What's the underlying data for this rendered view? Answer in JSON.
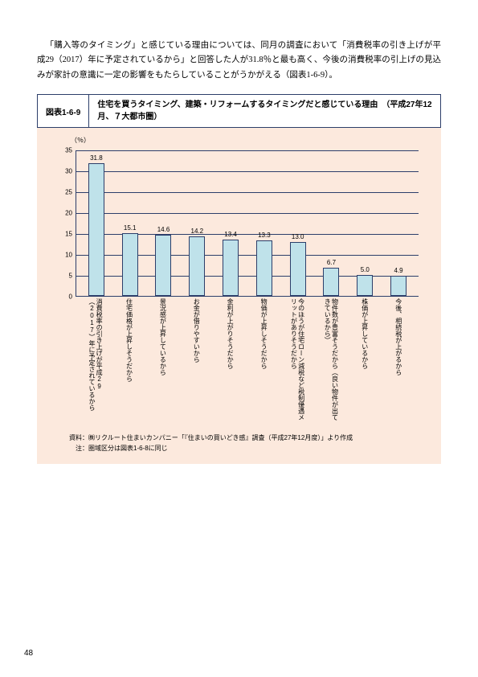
{
  "paragraph": "「購入等のタイミング」と感じている理由については、同月の調査において「消費税率の引き上げが平成29（2017）年に予定されているから」と回答した人が31.8％と最も高く、今後の消費税率の引上げの見込みが家計の意識に一定の影響をもたらしていることがうかがえる（図表1-6-9）。",
  "figure": {
    "number": "図表1-6-9",
    "title": "住宅を買うタイミング、建築・リフォームするタイミングだと感じている理由　（平成27年12月、７大都市圏）",
    "y_unit": "（％）",
    "ylim": [
      0,
      35
    ],
    "yticks": [
      0,
      5,
      10,
      15,
      20,
      25,
      30,
      35
    ],
    "bar_color": "#bfe2ea",
    "border_color": "#2c3e6a",
    "data": [
      {
        "label": "消費税率の引き上げが平成29（2017）年に予定されているから",
        "value": 31.8
      },
      {
        "label": "住宅価格が上昇しそうだから",
        "value": 15.1
      },
      {
        "label": "景況感が上昇しているから",
        "value": 14.6
      },
      {
        "label": "お金が借りやすいから",
        "value": 14.2
      },
      {
        "label": "金利が上がりそうだから",
        "value": 13.4
      },
      {
        "label": "物価が上昇しそうだから",
        "value": 13.3
      },
      {
        "label": "今のほうが住宅ローン減税など税制優遇メリットがありそうだから",
        "value": 13.0
      },
      {
        "label": "物件数が豊富そうだから（良い物件が出てきているから）",
        "value": 6.7
      },
      {
        "label": "株価が上昇しているから",
        "value": 5.0
      },
      {
        "label": "今後、相続税が上がるから",
        "value": 4.9
      }
    ],
    "source": "資料：㈱リクルート住まいカンパニー「『住まいの買いどき感』調査（平成27年12月度）」より作成",
    "note": "注：圏域区分は図表1-6-8に同じ"
  },
  "page_number": "48"
}
